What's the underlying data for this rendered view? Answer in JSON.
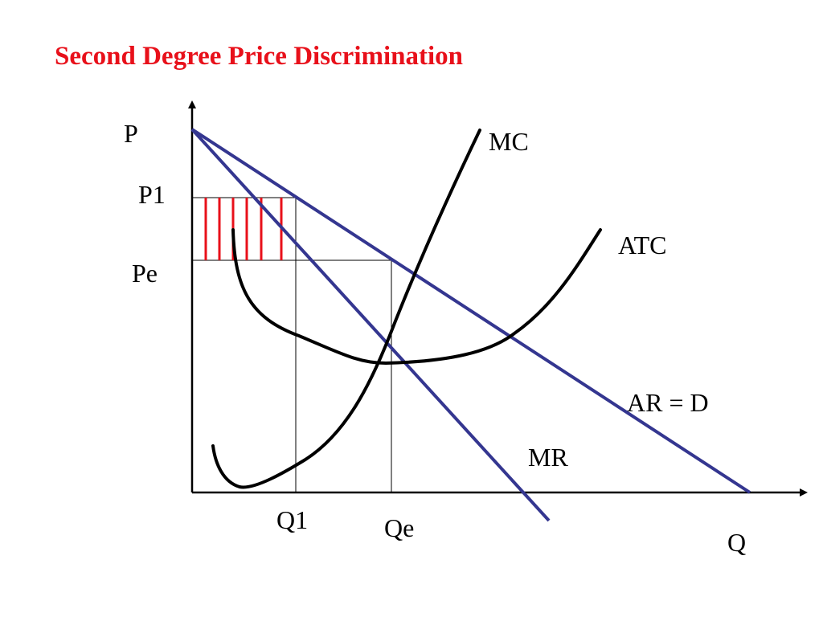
{
  "title": "Second Degree Price Discrimination",
  "colors": {
    "title": "#e8101a",
    "demand_lines": "#343690",
    "cost_curves": "#000000",
    "hatching": "#e8101a",
    "axes": "#000000"
  },
  "labels": {
    "y_axis": "P",
    "x_axis": "Q",
    "p1": "P1",
    "pe": "Pe",
    "q1": "Q1",
    "qe": "Qe",
    "mc": "MC",
    "atc": "ATC",
    "ar": "AR = D",
    "mr": "MR"
  }
}
